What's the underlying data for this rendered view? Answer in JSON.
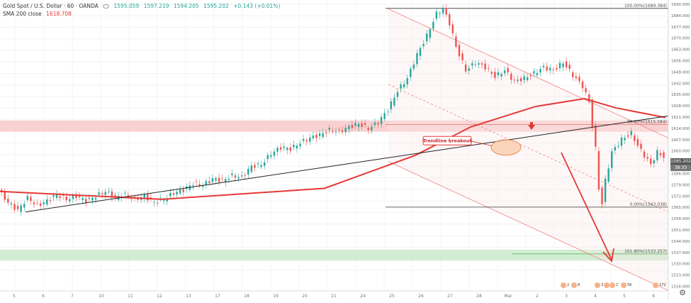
{
  "legend": {
    "symbol": "Gold Spot / U.S. Dollar · 60 · OANDA",
    "o": "1595.059",
    "h": "1597.219",
    "l": "1594.205",
    "c": "1595.202",
    "change": "+0.143 (+0.01%)",
    "ma_label": "SMA 200 close",
    "ma_value": "1618.708"
  },
  "price_axis": {
    "ticks": [
      "1690.000",
      "1684.000",
      "1677.000",
      "1670.000",
      "1663.000",
      "1656.000",
      "1649.000",
      "1642.000",
      "1635.000",
      "1628.000",
      "1621.000",
      "1614.000",
      "1607.000",
      "1600.000",
      "1593.000",
      "1586.000",
      "1579.000",
      "1572.000",
      "1565.000",
      "1558.000",
      "1551.000",
      "1544.000",
      "1537.000",
      "1530.000",
      "1523.000",
      "1516.000"
    ],
    "current_price": "1595.202",
    "countdown": "38:33"
  },
  "date_axis": [
    "5",
    "6",
    "7",
    "10",
    "11",
    "12",
    "13",
    "17",
    "18",
    "19",
    "20",
    "21",
    "24",
    "25",
    "26",
    "27",
    "28",
    "Mar",
    "2",
    "3",
    "4",
    "5",
    "6"
  ],
  "annotation": {
    "text": "Trendline breakout"
  },
  "fib_levels": [
    {
      "label": "100.00%(1689.384)"
    },
    {
      "label": "38.20%(1615.584)"
    },
    {
      "label": "0.00%(1563.038)"
    },
    {
      "label": "161.80%(1533.257)"
    }
  ],
  "bottom_badges": [
    "2",
    "8",
    "3",
    "2",
    "2",
    "56",
    "172"
  ],
  "colors": {
    "up": "#26a69a",
    "down": "#ef5350",
    "ma": "#e53935",
    "resistance_zone": "#f7c6c6",
    "support_zone": "#c8e8c8",
    "trendline": "#222222",
    "channel": "#f08080",
    "arrow": "#e53935"
  },
  "chart_data": {
    "type": "candlestick",
    "title": "Gold Spot / U.S. Dollar · 60 · OANDA",
    "x_dates": [
      "5",
      "6",
      "7",
      "10",
      "11",
      "12",
      "13",
      "17",
      "18",
      "19",
      "20",
      "21",
      "24",
      "25",
      "26",
      "27",
      "28",
      "Mar",
      "2",
      "3",
      "4",
      "5",
      "6"
    ],
    "y_range": [
      1512,
      1692
    ],
    "path_points": [
      [
        0,
        1574
      ],
      [
        3,
        1566
      ],
      [
        6,
        1561
      ],
      [
        9,
        1569
      ],
      [
        12,
        1564
      ],
      [
        15,
        1567
      ],
      [
        18,
        1571
      ],
      [
        21,
        1568
      ],
      [
        24,
        1570
      ],
      [
        27,
        1567
      ],
      [
        30,
        1570
      ],
      [
        33,
        1573
      ],
      [
        36,
        1569
      ],
      [
        39,
        1571
      ],
      [
        42,
        1568
      ],
      [
        45,
        1570
      ],
      [
        48,
        1566
      ],
      [
        51,
        1568
      ],
      [
        54,
        1572
      ],
      [
        57,
        1574
      ],
      [
        60,
        1578
      ],
      [
        63,
        1577
      ],
      [
        66,
        1581
      ],
      [
        69,
        1580
      ],
      [
        72,
        1583
      ],
      [
        75,
        1582
      ],
      [
        78,
        1589
      ],
      [
        81,
        1590
      ],
      [
        84,
        1597
      ],
      [
        87,
        1601
      ],
      [
        90,
        1600
      ],
      [
        93,
        1604
      ],
      [
        96,
        1607
      ],
      [
        99,
        1609
      ],
      [
        102,
        1612
      ],
      [
        105,
        1611
      ],
      [
        108,
        1614
      ],
      [
        111,
        1616
      ],
      [
        114,
        1613
      ],
      [
        117,
        1617
      ],
      [
        120,
        1625
      ],
      [
        123,
        1637
      ],
      [
        126,
        1645
      ],
      [
        129,
        1660
      ],
      [
        132,
        1672
      ],
      [
        135,
        1686
      ],
      [
        137,
        1689
      ],
      [
        139,
        1680
      ],
      [
        141,
        1665
      ],
      [
        144,
        1650
      ],
      [
        147,
        1655
      ],
      [
        150,
        1652
      ],
      [
        153,
        1646
      ],
      [
        156,
        1650
      ],
      [
        159,
        1643
      ],
      [
        162,
        1645
      ],
      [
        165,
        1648
      ],
      [
        168,
        1652
      ],
      [
        171,
        1650
      ],
      [
        174,
        1655
      ],
      [
        177,
        1647
      ],
      [
        180,
        1640
      ],
      [
        182,
        1630
      ],
      [
        184,
        1600
      ],
      [
        185,
        1575
      ],
      [
        186,
        1565
      ],
      [
        187,
        1580
      ],
      [
        189,
        1598
      ],
      [
        192,
        1606
      ],
      [
        195,
        1610
      ],
      [
        197,
        1602
      ],
      [
        199,
        1596
      ],
      [
        201,
        1590
      ],
      [
        203,
        1598
      ],
      [
        205,
        1595
      ]
    ],
    "sma200": [
      [
        0,
        1573
      ],
      [
        50,
        1568
      ],
      [
        100,
        1575
      ],
      [
        128,
        1596
      ],
      [
        145,
        1614
      ],
      [
        165,
        1627
      ],
      [
        180,
        1632
      ],
      [
        190,
        1626
      ],
      [
        205,
        1620
      ]
    ],
    "fib_retracement": [
      {
        "ratio": "100.00%",
        "value": 1689.384
      },
      {
        "ratio": "38.20%",
        "value": 1615.584
      },
      {
        "ratio": "0.00%",
        "value": 1563.038
      },
      {
        "ratio": "161.80%",
        "value": 1533.257
      }
    ],
    "resistance_zone": [
      1611,
      1618
    ],
    "support_zone": [
      1529,
      1536
    ],
    "trendline": [
      [
        9,
        1560
      ],
      [
        240,
        1620
      ]
    ],
    "annotation": "Trendline breakout"
  }
}
